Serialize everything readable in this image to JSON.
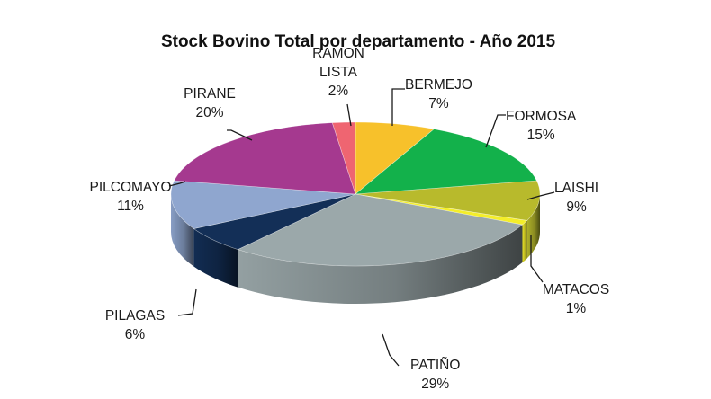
{
  "chart_data": {
    "type": "pie",
    "style": "3d",
    "title": "Stock Bovino Total por departamento - Año 2015",
    "legend": "none",
    "slices": [
      {
        "label_lines": [
          "BERMEJO"
        ],
        "percent_label": "7%",
        "value": 7,
        "color": "#f7c12b"
      },
      {
        "label_lines": [
          "FORMOSA"
        ],
        "percent_label": "15%",
        "value": 15,
        "color": "#13b14b"
      },
      {
        "label_lines": [
          "LAISHI"
        ],
        "percent_label": "9%",
        "value": 9,
        "color": "#b8ba2c"
      },
      {
        "label_lines": [
          "MATACOS"
        ],
        "percent_label": "1%",
        "value": 1,
        "color": "#f4ee2a"
      },
      {
        "label_lines": [
          "PATIÑO"
        ],
        "percent_label": "29%",
        "value": 29,
        "color": "#9ba8aa"
      },
      {
        "label_lines": [
          "PILAGAS"
        ],
        "percent_label": "6%",
        "value": 6,
        "color": "#132f57"
      },
      {
        "label_lines": [
          "PILCOMAYO"
        ],
        "percent_label": "11%",
        "value": 11,
        "color": "#8fa6cf"
      },
      {
        "label_lines": [
          "PIRANE"
        ],
        "percent_label": "20%",
        "value": 20,
        "color": "#a5398f"
      },
      {
        "label_lines": [
          "RAMON",
          "LISTA"
        ],
        "percent_label": "2%",
        "value": 2,
        "color": "#ef6571"
      }
    ]
  }
}
